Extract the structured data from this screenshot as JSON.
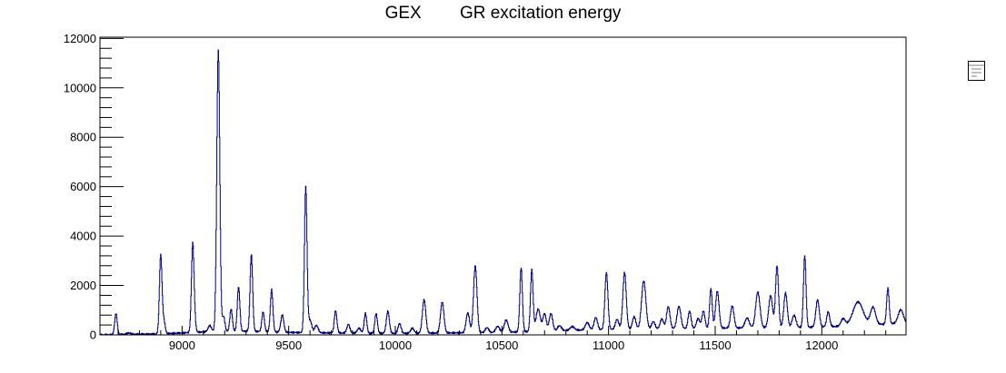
{
  "chart_data": {
    "type": "line",
    "title": "GEX        GR excitation energy",
    "xlabel": "",
    "ylabel": "",
    "xlim": [
      8615,
      12395
    ],
    "ylim": [
      0,
      12050
    ],
    "x_ticks": [
      9000,
      9500,
      10000,
      10500,
      11000,
      11500,
      12000
    ],
    "y_ticks": [
      0,
      2000,
      4000,
      6000,
      8000,
      10000,
      12000
    ],
    "x_tick_labels": [
      "9000",
      "9500",
      "10000",
      "10500",
      "11000",
      "11500",
      "12000"
    ],
    "y_tick_labels": [
      "0",
      "2000",
      "4000",
      "6000",
      "8000",
      "10000",
      "12000"
    ],
    "grid": false,
    "legend": "stats box top-right",
    "line_color": "#000080",
    "series": [
      {
        "peaks": [
          [
            8690,
            850,
            6
          ],
          [
            8750,
            60,
            10
          ],
          [
            8900,
            3200,
            6
          ],
          [
            8915,
            500,
            6
          ],
          [
            9050,
            3600,
            6
          ],
          [
            9060,
            300,
            5
          ],
          [
            9170,
            11400,
            7
          ],
          [
            9130,
            250,
            8
          ],
          [
            9195,
            600,
            6
          ],
          [
            9230,
            900,
            6
          ],
          [
            9265,
            1800,
            6
          ],
          [
            9325,
            3100,
            6
          ],
          [
            9380,
            800,
            6
          ],
          [
            9420,
            1700,
            6
          ],
          [
            9470,
            700,
            7
          ],
          [
            9580,
            5900,
            6
          ],
          [
            9600,
            500,
            8
          ],
          [
            9630,
            300,
            8
          ],
          [
            9720,
            900,
            6
          ],
          [
            9780,
            350,
            7
          ],
          [
            9830,
            200,
            8
          ],
          [
            9860,
            800,
            6
          ],
          [
            9910,
            800,
            6
          ],
          [
            9965,
            900,
            7
          ],
          [
            10020,
            400,
            7
          ],
          [
            10080,
            200,
            8
          ],
          [
            10135,
            1350,
            8
          ],
          [
            10220,
            1250,
            8
          ],
          [
            10340,
            800,
            8
          ],
          [
            10375,
            2700,
            8
          ],
          [
            10430,
            200,
            8
          ],
          [
            10480,
            250,
            9
          ],
          [
            10520,
            500,
            9
          ],
          [
            10590,
            2600,
            6
          ],
          [
            10640,
            2500,
            6
          ],
          [
            10670,
            900,
            10
          ],
          [
            10700,
            700,
            8
          ],
          [
            10730,
            700,
            8
          ],
          [
            10770,
            200,
            9
          ],
          [
            10830,
            150,
            10
          ],
          [
            10900,
            300,
            9
          ],
          [
            10940,
            500,
            8
          ],
          [
            10990,
            2300,
            7
          ],
          [
            11040,
            400,
            8
          ],
          [
            11075,
            2300,
            8
          ],
          [
            11120,
            500,
            8
          ],
          [
            11165,
            1950,
            10
          ],
          [
            11210,
            300,
            8
          ],
          [
            11250,
            400,
            8
          ],
          [
            11280,
            900,
            8
          ],
          [
            11330,
            900,
            9
          ],
          [
            11380,
            700,
            7
          ],
          [
            11420,
            400,
            8
          ],
          [
            11445,
            700,
            7
          ],
          [
            11480,
            1600,
            6
          ],
          [
            11510,
            1500,
            8
          ],
          [
            11580,
            900,
            8
          ],
          [
            11650,
            400,
            10
          ],
          [
            11700,
            1450,
            10
          ],
          [
            11760,
            1300,
            9
          ],
          [
            11790,
            2500,
            7
          ],
          [
            11830,
            1400,
            8
          ],
          [
            11870,
            500,
            9
          ],
          [
            11920,
            2900,
            6
          ],
          [
            11980,
            1100,
            8
          ],
          [
            12030,
            600,
            7
          ],
          [
            12100,
            300,
            10
          ],
          [
            12170,
            950,
            24
          ],
          [
            12240,
            700,
            12
          ],
          [
            12310,
            1450,
            6
          ],
          [
            12370,
            550,
            12
          ]
        ],
        "baseline": [
          [
            8615,
            0
          ],
          [
            8900,
            40
          ],
          [
            9100,
            120
          ],
          [
            9300,
            150
          ],
          [
            9500,
            100
          ],
          [
            9700,
            80
          ],
          [
            10000,
            60
          ],
          [
            10500,
            100
          ],
          [
            10800,
            180
          ],
          [
            11000,
            220
          ],
          [
            11300,
            250
          ],
          [
            11600,
            280
          ],
          [
            11900,
            300
          ],
          [
            12100,
            350
          ],
          [
            12395,
            480
          ]
        ]
      }
    ]
  }
}
